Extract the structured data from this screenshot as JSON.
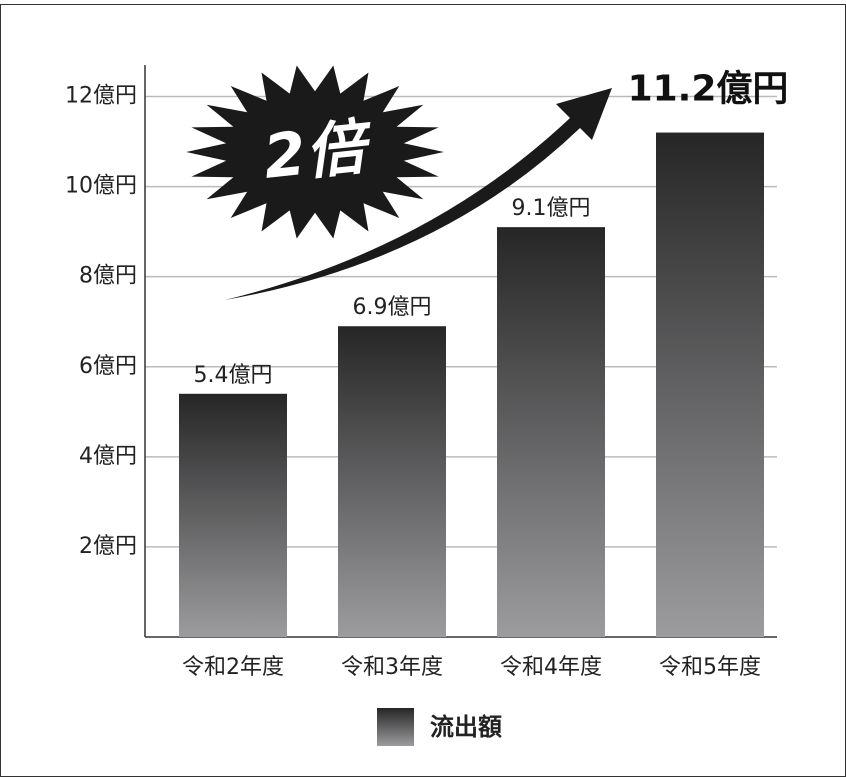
{
  "chart_data": {
    "type": "bar",
    "categories": [
      "令和2年度",
      "令和3年度",
      "令和4年度",
      "令和5年度"
    ],
    "series": [
      {
        "name": "流出額",
        "color": [
          "#262627",
          "#9c9c9e"
        ],
        "values": [
          5.4,
          6.9,
          9.1,
          11.2
        ],
        "value_labels": [
          "5.4億円",
          "6.9億円",
          "9.1億円",
          "11.2億円"
        ]
      }
    ],
    "ylim": [
      0,
      12.7
    ],
    "yticks": [
      {
        "value": 2,
        "label": "2億円"
      },
      {
        "value": 4,
        "label": "4億円"
      },
      {
        "value": 6,
        "label": "6億円"
      },
      {
        "value": 8,
        "label": "8億円"
      },
      {
        "value": 10,
        "label": "10億円"
      },
      {
        "value": 12,
        "label": "12億円"
      }
    ],
    "grid": true,
    "annotation": "2倍"
  }
}
